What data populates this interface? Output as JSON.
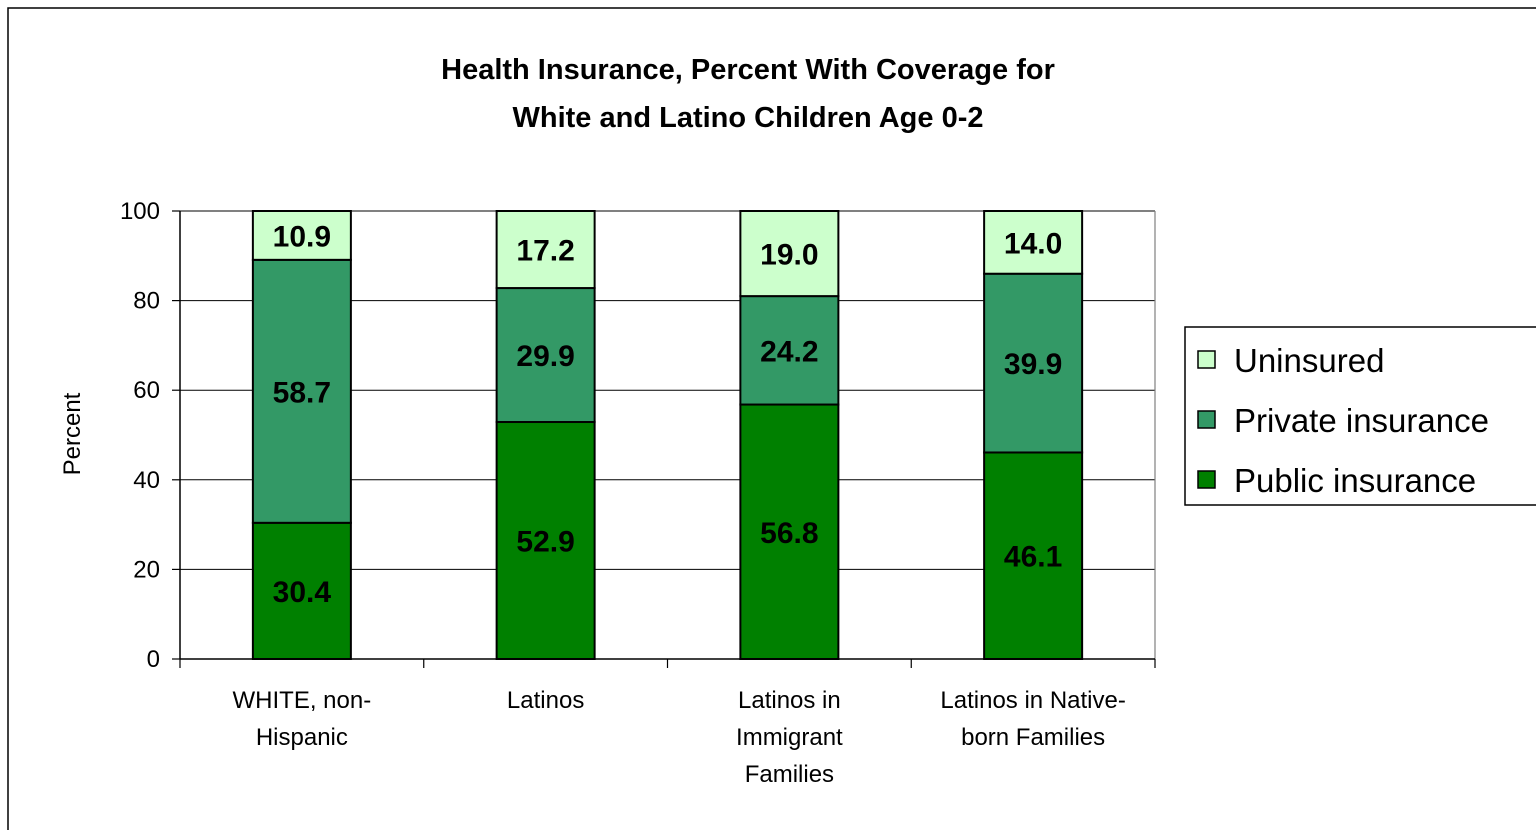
{
  "chart_data": {
    "type": "bar",
    "stacked": true,
    "title_lines": [
      "Health Insurance, Percent With Coverage for",
      "White and Latino Children Age 0-2"
    ],
    "ylabel": "Percent",
    "ylim": [
      0,
      100
    ],
    "yticks": [
      0,
      20,
      40,
      60,
      80,
      100
    ],
    "grid": true,
    "legend_position": "right",
    "categories": [
      [
        "WHITE, non-",
        "Hispanic"
      ],
      [
        "Latinos"
      ],
      [
        "Latinos in",
        "Immigrant",
        "Families"
      ],
      [
        "Latinos in Native-",
        "born Families"
      ]
    ],
    "series": [
      {
        "name": "Public insurance",
        "color": "#008000",
        "values": [
          30.4,
          52.9,
          56.8,
          46.1
        ],
        "labels": [
          "30.4",
          "52.9",
          "56.8",
          "46.1"
        ]
      },
      {
        "name": "Private insurance",
        "color": "#339966",
        "values": [
          58.7,
          29.9,
          24.2,
          39.9
        ],
        "labels": [
          "58.7",
          "29.9",
          "24.2",
          "39.9"
        ]
      },
      {
        "name": "Uninsured",
        "color": "#CCFFCC",
        "values": [
          10.9,
          17.2,
          19.0,
          14.0
        ],
        "labels": [
          "10.9",
          "17.2",
          "19.0",
          "14.0"
        ]
      }
    ],
    "legend_order": [
      "Uninsured",
      "Private insurance",
      "Public insurance"
    ]
  }
}
